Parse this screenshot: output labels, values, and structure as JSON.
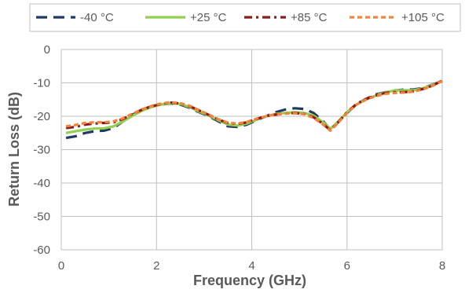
{
  "chart_data": {
    "type": "line",
    "xlabel": "Frequency (GHz)",
    "ylabel": "Return Loss (dB)",
    "xlim": [
      0,
      8
    ],
    "ylim": [
      -60,
      0
    ],
    "x_ticks": [
      0,
      2,
      4,
      6,
      8
    ],
    "y_ticks": [
      0,
      -10,
      -20,
      -30,
      -40,
      -50,
      -60
    ],
    "x_tick_labels": [
      "0",
      "2",
      "4",
      "6",
      "8"
    ],
    "y_tick_labels": [
      "0",
      "-10",
      "-20",
      "-30",
      "-40",
      "-50",
      "-60"
    ],
    "grid": true,
    "legend_position": "top",
    "series": [
      {
        "name": "-40 °C",
        "color": "#1f3864",
        "dash": "long-dash",
        "points": [
          [
            0.1,
            -26.5
          ],
          [
            0.3,
            -26.0
          ],
          [
            0.5,
            -25.0
          ],
          [
            0.7,
            -24.5
          ],
          [
            0.9,
            -24.3
          ],
          [
            1.1,
            -23.5
          ],
          [
            1.3,
            -21.5
          ],
          [
            1.5,
            -19.5
          ],
          [
            1.7,
            -18.0
          ],
          [
            1.9,
            -17.0
          ],
          [
            2.1,
            -16.5
          ],
          [
            2.3,
            -16.2
          ],
          [
            2.5,
            -16.5
          ],
          [
            2.7,
            -17.5
          ],
          [
            2.9,
            -18.8
          ],
          [
            3.1,
            -20.0
          ],
          [
            3.3,
            -21.5
          ],
          [
            3.5,
            -23.0
          ],
          [
            3.7,
            -23.2
          ],
          [
            3.9,
            -22.5
          ],
          [
            4.1,
            -21.2
          ],
          [
            4.3,
            -20.0
          ],
          [
            4.5,
            -18.8
          ],
          [
            4.7,
            -18.0
          ],
          [
            4.9,
            -17.6
          ],
          [
            5.1,
            -17.8
          ],
          [
            5.3,
            -19.0
          ],
          [
            5.5,
            -21.5
          ],
          [
            5.65,
            -24.0
          ],
          [
            5.8,
            -22.0
          ],
          [
            6.0,
            -19.0
          ],
          [
            6.2,
            -16.5
          ],
          [
            6.4,
            -14.8
          ],
          [
            6.6,
            -13.5
          ],
          [
            6.8,
            -12.8
          ],
          [
            7.0,
            -12.3
          ],
          [
            7.2,
            -12.0
          ],
          [
            7.4,
            -12.0
          ],
          [
            7.6,
            -11.5
          ],
          [
            7.8,
            -10.5
          ],
          [
            8.0,
            -9.5
          ]
        ]
      },
      {
        "name": "+25 °C",
        "color": "#92d050",
        "dash": "solid",
        "points": [
          [
            0.1,
            -25.0
          ],
          [
            0.3,
            -24.5
          ],
          [
            0.5,
            -24.0
          ],
          [
            0.7,
            -23.7
          ],
          [
            0.9,
            -23.6
          ],
          [
            1.1,
            -23.0
          ],
          [
            1.3,
            -21.5
          ],
          [
            1.5,
            -19.8
          ],
          [
            1.7,
            -18.3
          ],
          [
            1.9,
            -17.2
          ],
          [
            2.1,
            -16.5
          ],
          [
            2.3,
            -16.1
          ],
          [
            2.5,
            -16.3
          ],
          [
            2.7,
            -17.3
          ],
          [
            2.9,
            -18.6
          ],
          [
            3.1,
            -19.8
          ],
          [
            3.3,
            -21.2
          ],
          [
            3.5,
            -22.5
          ],
          [
            3.7,
            -22.8
          ],
          [
            3.9,
            -22.2
          ],
          [
            4.1,
            -21.0
          ],
          [
            4.3,
            -20.0
          ],
          [
            4.5,
            -19.3
          ],
          [
            4.7,
            -19.0
          ],
          [
            4.9,
            -18.8
          ],
          [
            5.1,
            -19.0
          ],
          [
            5.3,
            -19.8
          ],
          [
            5.5,
            -21.8
          ],
          [
            5.65,
            -23.8
          ],
          [
            5.8,
            -21.8
          ],
          [
            6.0,
            -18.8
          ],
          [
            6.2,
            -16.5
          ],
          [
            6.4,
            -15.0
          ],
          [
            6.6,
            -13.8
          ],
          [
            6.8,
            -12.8
          ],
          [
            7.0,
            -12.3
          ],
          [
            7.2,
            -12.2
          ],
          [
            7.4,
            -12.2
          ],
          [
            7.6,
            -11.6
          ],
          [
            7.8,
            -10.6
          ],
          [
            8.0,
            -9.6
          ]
        ]
      },
      {
        "name": "+85 °C",
        "color": "#8b1a1a",
        "dash": "dash-dot",
        "points": [
          [
            0.1,
            -23.5
          ],
          [
            0.3,
            -23.2
          ],
          [
            0.5,
            -22.5
          ],
          [
            0.7,
            -22.2
          ],
          [
            0.9,
            -22.0
          ],
          [
            1.1,
            -21.8
          ],
          [
            1.3,
            -20.8
          ],
          [
            1.5,
            -19.3
          ],
          [
            1.7,
            -18.0
          ],
          [
            1.9,
            -17.0
          ],
          [
            2.1,
            -16.3
          ],
          [
            2.3,
            -15.9
          ],
          [
            2.5,
            -16.2
          ],
          [
            2.7,
            -17.0
          ],
          [
            2.9,
            -18.3
          ],
          [
            3.1,
            -19.6
          ],
          [
            3.3,
            -21.0
          ],
          [
            3.5,
            -22.0
          ],
          [
            3.7,
            -22.3
          ],
          [
            3.9,
            -21.8
          ],
          [
            4.1,
            -20.8
          ],
          [
            4.3,
            -20.0
          ],
          [
            4.5,
            -19.5
          ],
          [
            4.7,
            -19.2
          ],
          [
            4.9,
            -19.0
          ],
          [
            5.1,
            -19.3
          ],
          [
            5.3,
            -20.3
          ],
          [
            5.5,
            -22.3
          ],
          [
            5.65,
            -24.2
          ],
          [
            5.8,
            -22.0
          ],
          [
            6.0,
            -18.8
          ],
          [
            6.2,
            -16.3
          ],
          [
            6.4,
            -14.8
          ],
          [
            6.6,
            -13.8
          ],
          [
            6.8,
            -13.0
          ],
          [
            7.0,
            -12.8
          ],
          [
            7.2,
            -12.8
          ],
          [
            7.4,
            -12.5
          ],
          [
            7.6,
            -11.8
          ],
          [
            7.8,
            -10.8
          ],
          [
            8.0,
            -9.3
          ]
        ]
      },
      {
        "name": "+105 °C",
        "color": "#f4813c",
        "dash": "short-dash",
        "points": [
          [
            0.1,
            -23.0
          ],
          [
            0.3,
            -22.6
          ],
          [
            0.5,
            -22.0
          ],
          [
            0.7,
            -21.8
          ],
          [
            0.9,
            -21.8
          ],
          [
            1.1,
            -21.5
          ],
          [
            1.3,
            -20.6
          ],
          [
            1.5,
            -19.2
          ],
          [
            1.7,
            -17.9
          ],
          [
            1.9,
            -16.9
          ],
          [
            2.1,
            -16.2
          ],
          [
            2.3,
            -15.8
          ],
          [
            2.5,
            -16.1
          ],
          [
            2.7,
            -16.9
          ],
          [
            2.9,
            -18.2
          ],
          [
            3.1,
            -19.5
          ],
          [
            3.3,
            -20.9
          ],
          [
            3.5,
            -21.9
          ],
          [
            3.7,
            -22.2
          ],
          [
            3.9,
            -21.7
          ],
          [
            4.1,
            -20.7
          ],
          [
            4.3,
            -20.0
          ],
          [
            4.5,
            -19.5
          ],
          [
            4.7,
            -19.2
          ],
          [
            4.9,
            -19.1
          ],
          [
            5.1,
            -19.4
          ],
          [
            5.3,
            -20.5
          ],
          [
            5.5,
            -22.5
          ],
          [
            5.65,
            -24.3
          ],
          [
            5.8,
            -22.2
          ],
          [
            6.0,
            -19.0
          ],
          [
            6.2,
            -16.5
          ],
          [
            6.4,
            -15.0
          ],
          [
            6.6,
            -14.0
          ],
          [
            6.8,
            -13.3
          ],
          [
            7.0,
            -13.0
          ],
          [
            7.2,
            -12.9
          ],
          [
            7.4,
            -12.6
          ],
          [
            7.6,
            -11.9
          ],
          [
            7.8,
            -10.9
          ],
          [
            8.0,
            -9.4
          ]
        ]
      }
    ]
  }
}
